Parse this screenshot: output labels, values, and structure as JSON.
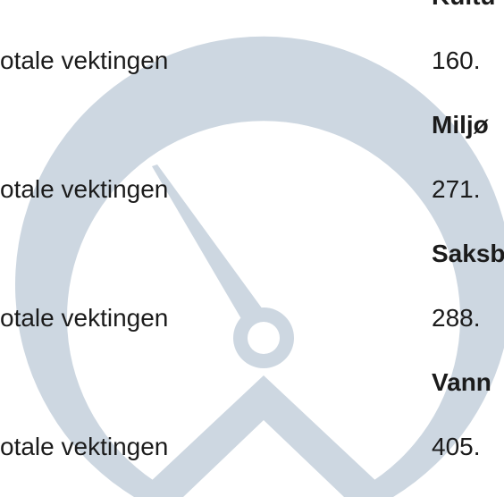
{
  "rows": [
    {
      "heading": "Kultu",
      "label": "otale vektingen",
      "value": "160."
    },
    {
      "heading": "Miljø",
      "label": "otale vektingen",
      "value": "271."
    },
    {
      "heading": "Saksb",
      "label": "otale vektingen",
      "value": "288."
    },
    {
      "heading": "Vann",
      "label": "otale vektingen",
      "value": "405."
    }
  ]
}
